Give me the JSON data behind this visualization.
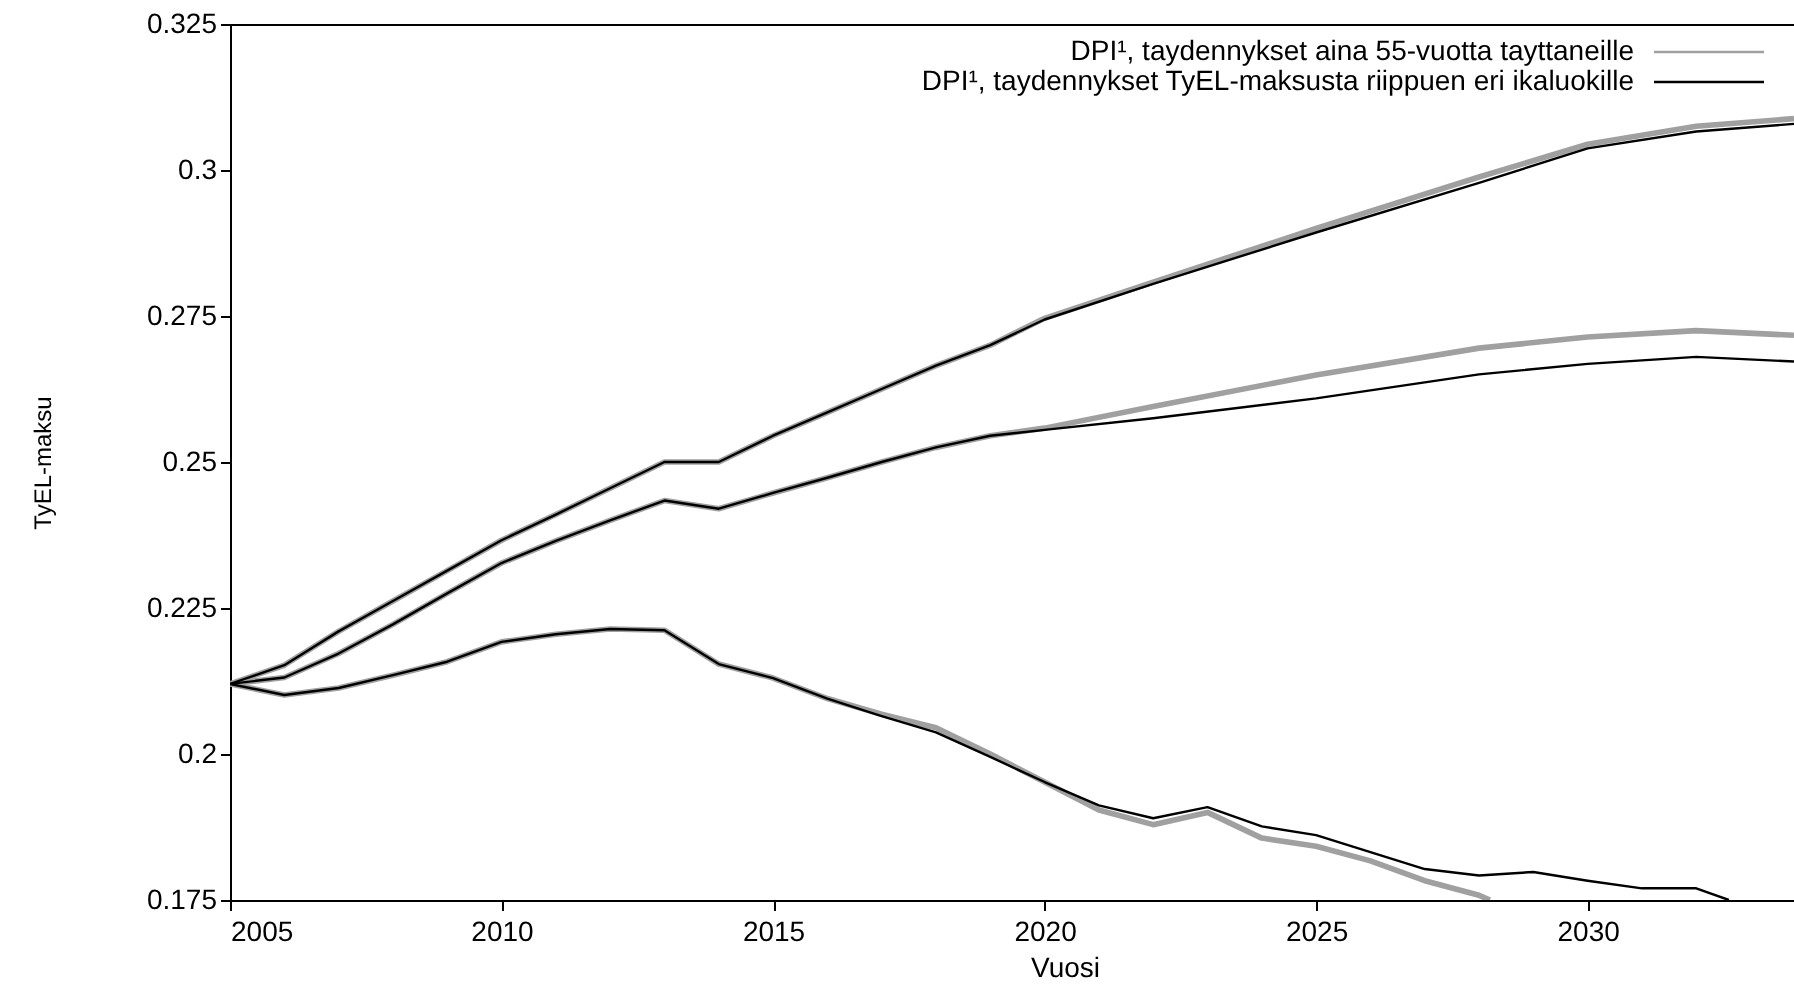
{
  "chart_data": {
    "type": "line",
    "xlabel": "Vuosi",
    "ylabel": "TyEL-maksu",
    "xlim": [
      2005,
      2033.8
    ],
    "ylim": [
      0.175,
      0.325
    ],
    "xticks": [
      2005,
      2010,
      2015,
      2020,
      2025,
      2030
    ],
    "yticks": [
      0.175,
      0.2,
      0.225,
      0.25,
      0.275,
      0.3,
      0.325
    ],
    "grid": false,
    "legend": "top right",
    "marker": "none",
    "line_style": "solid",
    "series": [
      {
        "name": "DPI¹, taydennykset aina 55-vuotta tayttaneille",
        "color": "#a0a0a0",
        "x": [
          2005,
          2006,
          2007,
          2008,
          2009,
          2010,
          2011,
          2012,
          2013,
          2014,
          2015,
          2016,
          2017,
          2018,
          2019,
          2020,
          2022,
          2025,
          2028,
          2030,
          2032,
          2033.8
        ],
        "values": [
          0.212,
          0.2152,
          0.221,
          0.2262,
          0.2314,
          0.2366,
          0.241,
          0.2455,
          0.25,
          0.25,
          0.2545,
          0.2585,
          0.2625,
          0.2665,
          0.27,
          0.2746,
          0.2808,
          0.29,
          0.2988,
          0.3044,
          0.3075,
          0.3088
        ]
      },
      {
        "color": "#a0a0a0",
        "x": [
          2005,
          2006,
          2007,
          2008,
          2009,
          2010,
          2011,
          2012,
          2013,
          2014,
          2015,
          2016,
          2017,
          2018,
          2019,
          2020,
          2022,
          2025,
          2028,
          2030,
          2032,
          2033.8
        ],
        "values": [
          0.212,
          0.2131,
          0.2172,
          0.2222,
          0.2275,
          0.2327,
          0.2365,
          0.24,
          0.2434,
          0.242,
          0.2447,
          0.2473,
          0.25,
          0.2525,
          0.2545,
          0.2558,
          0.2595,
          0.2649,
          0.2695,
          0.2714,
          0.2725,
          0.2717
        ]
      },
      {
        "color": "#a0a0a0",
        "x": [
          2005,
          2006,
          2007,
          2008,
          2009,
          2010,
          2011,
          2012,
          2013,
          2014,
          2015,
          2016,
          2017,
          2018,
          2019,
          2020,
          2021,
          2022,
          2023,
          2024,
          2025,
          2026,
          2027,
          2028,
          2028.2
        ],
        "values": [
          0.212,
          0.2101,
          0.2113,
          0.2135,
          0.2158,
          0.2192,
          0.2205,
          0.2214,
          0.2212,
          0.2154,
          0.213,
          0.2095,
          0.2068,
          0.2045,
          0.2,
          0.1952,
          0.1904,
          0.1879,
          0.19,
          0.1856,
          0.1842,
          0.1817,
          0.1783,
          0.1758,
          0.175
        ]
      },
      {
        "name": "DPI¹, taydennykset TyEL-maksusta riippuen eri ikaluokille",
        "color": "#000000",
        "x": [
          2005,
          2006,
          2007,
          2008,
          2009,
          2010,
          2011,
          2012,
          2013,
          2014,
          2015,
          2016,
          2017,
          2018,
          2019,
          2020,
          2022,
          2025,
          2028,
          2030,
          2032,
          2033.8
        ],
        "values": [
          0.212,
          0.2152,
          0.221,
          0.2262,
          0.2314,
          0.2366,
          0.241,
          0.2455,
          0.25,
          0.25,
          0.2545,
          0.2585,
          0.2625,
          0.2665,
          0.27,
          0.2744,
          0.2805,
          0.2893,
          0.2978,
          0.3037,
          0.3066,
          0.3079
        ]
      },
      {
        "color": "#000000",
        "x": [
          2005,
          2006,
          2007,
          2008,
          2009,
          2010,
          2011,
          2012,
          2013,
          2014,
          2015,
          2016,
          2017,
          2018,
          2019,
          2020,
          2022,
          2025,
          2028,
          2030,
          2032,
          2033.8
        ],
        "values": [
          0.212,
          0.2131,
          0.2172,
          0.2222,
          0.2275,
          0.2327,
          0.2365,
          0.24,
          0.2434,
          0.242,
          0.2447,
          0.2473,
          0.25,
          0.2525,
          0.2545,
          0.2555,
          0.2575,
          0.2609,
          0.265,
          0.2668,
          0.268,
          0.2672
        ]
      },
      {
        "color": "#000000",
        "x": [
          2005,
          2006,
          2007,
          2008,
          2009,
          2010,
          2011,
          2012,
          2013,
          2014,
          2015,
          2016,
          2017,
          2018,
          2019,
          2020,
          2021,
          2022,
          2023,
          2024,
          2025,
          2026,
          2027,
          2028,
          2029,
          2030,
          2031,
          2032,
          2032.6
        ],
        "values": [
          0.212,
          0.2101,
          0.2113,
          0.2135,
          0.2158,
          0.2192,
          0.2205,
          0.2214,
          0.2212,
          0.2154,
          0.213,
          0.2095,
          0.2065,
          0.2037,
          0.1995,
          0.1952,
          0.1912,
          0.189,
          0.1909,
          0.1876,
          0.1861,
          0.1832,
          0.1803,
          0.1792,
          0.1798,
          0.1783,
          0.177,
          0.177,
          0.175
        ]
      }
    ]
  }
}
